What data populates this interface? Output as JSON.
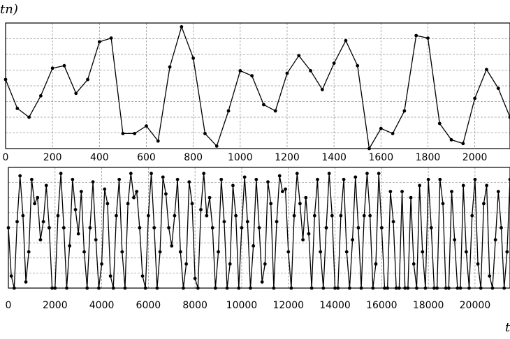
{
  "chart_data": [
    {
      "type": "line",
      "ylabel": "tn)",
      "xlim": [
        0,
        2150
      ],
      "ylim": [
        0,
        1
      ],
      "xticks": [
        0,
        200,
        400,
        600,
        800,
        1000,
        1200,
        1400,
        1600,
        1800,
        2000
      ],
      "grid": true,
      "x": [
        0,
        50,
        100,
        150,
        200,
        250,
        300,
        350,
        400,
        450,
        500,
        550,
        600,
        650,
        700,
        750,
        800,
        850,
        900,
        950,
        1000,
        1050,
        1100,
        1150,
        1200,
        1250,
        1300,
        1350,
        1400,
        1450,
        1500,
        1550,
        1600,
        1650,
        1700,
        1750,
        1800,
        1850,
        1900,
        1950,
        2000,
        2050,
        2100,
        2150
      ],
      "series": [
        {
          "color": "#000000",
          "markers": true,
          "values": [
            0.55,
            0.32,
            0.25,
            0.42,
            0.64,
            0.66,
            0.44,
            0.55,
            0.85,
            0.88,
            0.12,
            0.12,
            0.18,
            0.06,
            0.65,
            0.97,
            0.72,
            0.12,
            0.02,
            0.3,
            0.62,
            0.58,
            0.35,
            0.3,
            0.6,
            0.74,
            0.62,
            0.47,
            0.68,
            0.86,
            0.66,
            0.0,
            0.16,
            0.12,
            0.3,
            0.9,
            0.88,
            0.2,
            0.07,
            0.04,
            0.4,
            0.63,
            0.48,
            0.25
          ]
        }
      ]
    },
    {
      "type": "line",
      "xlabel": "t",
      "xlim": [
        0,
        21500
      ],
      "ylim": [
        0,
        1
      ],
      "xticks": [
        0,
        2000,
        4000,
        6000,
        8000,
        10000,
        12000,
        14000,
        16000,
        18000,
        20000
      ],
      "grid": true,
      "xstep": 125,
      "series": [
        {
          "color": "#000000",
          "markers": true,
          "values": [
            0.5,
            0.1,
            0.0,
            0.55,
            0.93,
            0.6,
            0.05,
            0.3,
            0.9,
            0.7,
            0.75,
            0.4,
            0.55,
            0.85,
            0.5,
            0.0,
            0.0,
            0.6,
            0.95,
            0.5,
            0.0,
            0.35,
            0.9,
            0.65,
            0.45,
            0.8,
            0.3,
            0.0,
            0.5,
            0.88,
            0.4,
            0.0,
            0.2,
            0.82,
            0.7,
            0.1,
            0.0,
            0.6,
            0.9,
            0.3,
            0.0,
            0.7,
            0.95,
            0.75,
            0.8,
            0.5,
            0.1,
            0.0,
            0.6,
            0.95,
            0.5,
            0.0,
            0.3,
            0.92,
            0.78,
            0.5,
            0.35,
            0.6,
            0.9,
            0.3,
            0.0,
            0.2,
            0.88,
            0.7,
            0.08,
            0.0,
            0.65,
            0.95,
            0.6,
            0.75,
            0.5,
            0.0,
            0.3,
            0.9,
            0.55,
            0.0,
            0.2,
            0.85,
            0.6,
            0.0,
            0.5,
            0.92,
            0.55,
            0.0,
            0.35,
            0.9,
            0.5,
            0.05,
            0.2,
            0.88,
            0.7,
            0.0,
            0.55,
            0.93,
            0.8,
            0.82,
            0.3,
            0.0,
            0.6,
            0.95,
            0.7,
            0.4,
            0.75,
            0.45,
            0.0,
            0.6,
            0.9,
            0.3,
            0.0,
            0.5,
            0.95,
            0.6,
            0.0,
            0.0,
            0.6,
            0.9,
            0.3,
            0.0,
            0.4,
            0.92,
            0.5,
            0.0,
            0.6,
            0.95,
            0.6,
            0.0,
            0.2,
            0.95,
            0.5,
            0.0,
            0.0,
            0.8,
            0.55,
            0.0,
            0.0,
            0.8,
            0.0,
            0.0,
            0.75,
            0.2,
            0.0,
            0.85,
            0.3,
            0.0,
            0.9,
            0.5,
            0.0,
            0.0,
            0.9,
            0.7,
            0.0,
            0.0,
            0.8,
            0.4,
            0.0,
            0.0,
            0.85,
            0.3,
            0.0,
            0.6,
            0.9,
            0.2,
            0.0,
            0.7,
            0.85,
            0.1,
            0.0,
            0.4,
            0.8,
            0.5,
            0.0,
            0.3,
            0.9
          ]
        }
      ]
    }
  ]
}
